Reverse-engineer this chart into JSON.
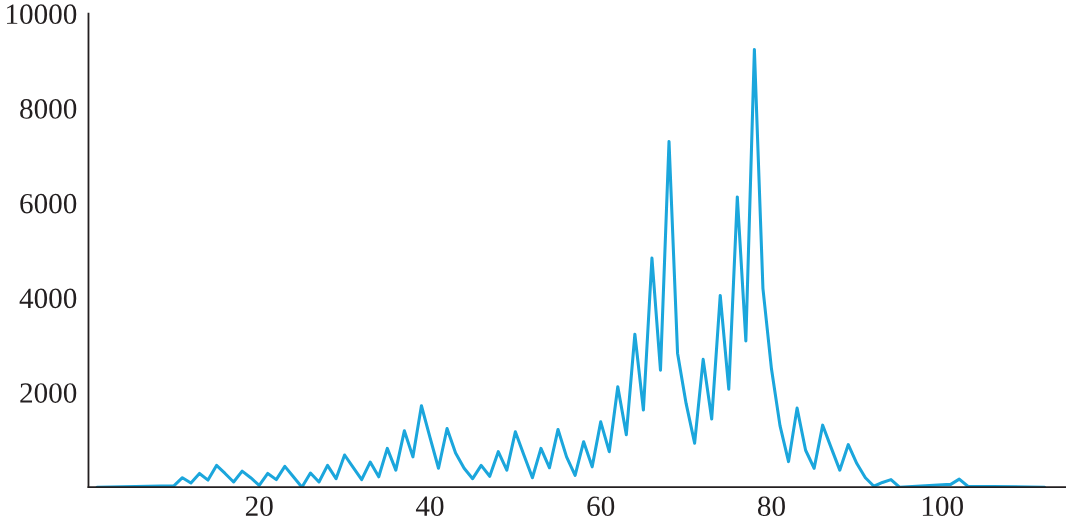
{
  "chart_data": {
    "type": "line",
    "xlim": [
      0,
      114.5
    ],
    "xticks": [
      20,
      40,
      60,
      80,
      100
    ],
    "ylim": [
      0,
      10000
    ],
    "yticks": [
      2000,
      4000,
      6000,
      8000,
      10000
    ],
    "grid": false,
    "legend": false,
    "marker": "none",
    "line_style": "solid",
    "series": [
      {
        "color": "#1ba6dc",
        "x": [
          1,
          10,
          11,
          12,
          13,
          14,
          15,
          16,
          17,
          18,
          19,
          20,
          21,
          22,
          23,
          24,
          25,
          26,
          27,
          28,
          29,
          30,
          31,
          32,
          33,
          34,
          35,
          36,
          37,
          38,
          39,
          40,
          41,
          42,
          43,
          44,
          45,
          46,
          47,
          48,
          49,
          50,
          51,
          52,
          53,
          54,
          55,
          56,
          57,
          58,
          59,
          60,
          61,
          62,
          63,
          64,
          65,
          66,
          67,
          68,
          69,
          70,
          71,
          72,
          73,
          74,
          75,
          76,
          77,
          78,
          79,
          80,
          81,
          82,
          83,
          84,
          85,
          86,
          87,
          88,
          89,
          90,
          91,
          92,
          93,
          94,
          95,
          100,
          101,
          102,
          103,
          112
        ],
        "values": [
          0,
          30,
          200,
          90,
          290,
          150,
          460,
          290,
          110,
          340,
          200,
          40,
          290,
          160,
          440,
          220,
          0,
          300,
          110,
          460,
          180,
          680,
          420,
          160,
          530,
          220,
          820,
          360,
          1190,
          640,
          1720,
          1050,
          400,
          1240,
          720,
          400,
          180,
          460,
          230,
          750,
          360,
          1170,
          680,
          200,
          820,
          410,
          1220,
          640,
          250,
          960,
          430,
          1380,
          750,
          2120,
          1110,
          3230,
          1630,
          4840,
          2470,
          7300,
          2830,
          1770,
          930,
          2700,
          1440,
          4050,
          2070,
          6130,
          3090,
          9240,
          4200,
          2500,
          1300,
          540,
          1670,
          780,
          400,
          1310,
          830,
          360,
          900,
          500,
          200,
          20,
          100,
          160,
          0,
          50,
          60,
          170,
          20,
          0
        ]
      }
    ]
  }
}
